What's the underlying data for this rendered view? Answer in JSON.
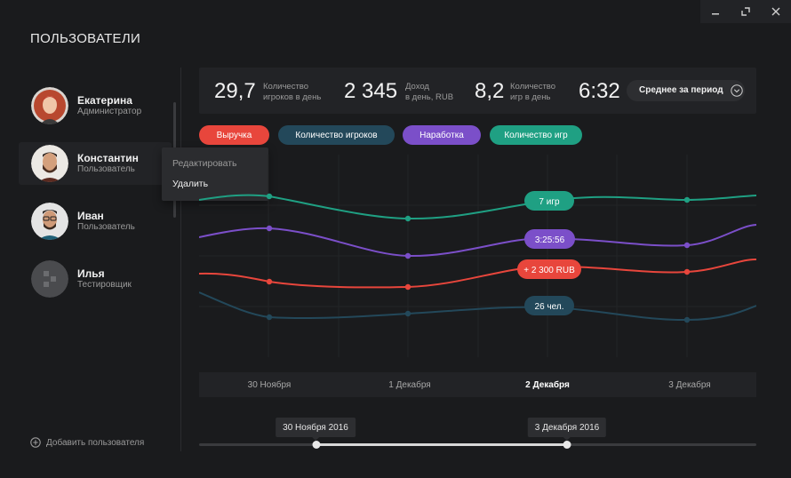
{
  "page_title": "ПОЛЬЗОВАТЕЛИ",
  "users": [
    {
      "name": "Екатерина",
      "role": "Администратор"
    },
    {
      "name": "Константин",
      "role": "Пользователь"
    },
    {
      "name": "Иван",
      "role": "Пользователь"
    },
    {
      "name": "Илья",
      "role": "Тестировщик"
    }
  ],
  "context_menu": {
    "edit": "Редактировать",
    "delete": "Удалить"
  },
  "add_user": "Добавить пользователя",
  "stats": [
    {
      "value": "29,7",
      "label_l1": "Количество",
      "label_l2": "игроков в день"
    },
    {
      "value": "2 345",
      "label_l1": "Доход",
      "label_l2": "в день, RUB"
    },
    {
      "value": "8,2",
      "label_l1": "Количество",
      "label_l2": "игр в день"
    },
    {
      "value": "6:32",
      "label_l1": "",
      "label_l2": ""
    }
  ],
  "period_dropdown": "Среднее за период",
  "legend_pills": [
    {
      "label": "Выручка",
      "color": "#e8463c"
    },
    {
      "label": "Количество игроков",
      "color": "#23485a"
    },
    {
      "label": "Наработка",
      "color": "#7b4fc9"
    },
    {
      "label": "Количество игр",
      "color": "#1fa083"
    }
  ],
  "x_labels": [
    "30 Ноября",
    "1 Декабря",
    "2 Декабря",
    "3 Декабря"
  ],
  "current_x_index": 2,
  "chart_tooltips": {
    "games": "7 игр",
    "uptime": "3:25:56",
    "revenue": "+ 2 300 RUB",
    "players": "26 чел."
  },
  "range_slider": {
    "start_label": "30 Ноября 2016",
    "end_label": "3 Декабря 2016",
    "start_fraction": 0.21,
    "end_fraction": 0.661
  },
  "colors": {
    "background": "#1a1b1d",
    "panel": "#222326",
    "revenue": "#e8463c",
    "players": "#23485a",
    "uptime": "#7b4fc9",
    "games": "#1fa083"
  }
}
